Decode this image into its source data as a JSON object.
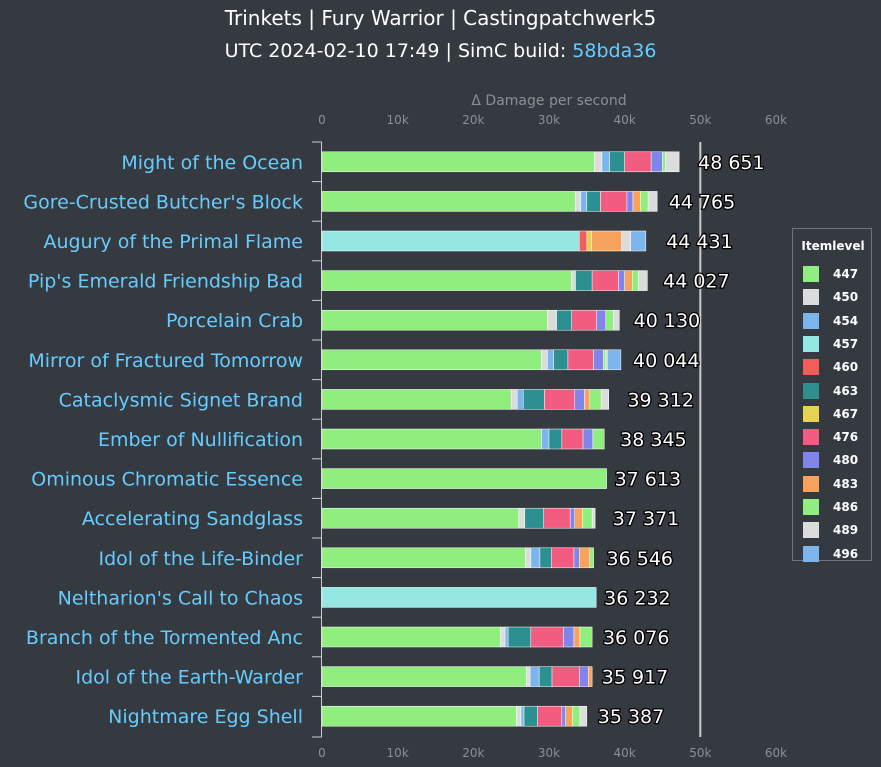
{
  "header": {
    "title": "Trinkets | Fury Warrior | Castingpatchwerk5",
    "subtitle_prefix": "UTC 2024-02-10 17:49 | SimC build: ",
    "subtitle_link": "58bda36"
  },
  "chart_data": {
    "type": "bar",
    "orientation": "horizontal",
    "stacked": true,
    "xlabel": "Δ Damage per second",
    "xlim": [
      0,
      60000
    ],
    "ticks": [
      0,
      10000,
      20000,
      30000,
      40000,
      50000,
      60000
    ],
    "tick_labels": [
      "0",
      "10k",
      "20k",
      "30k",
      "40k",
      "50k",
      "60k"
    ],
    "grid": false,
    "legend_title": "Itemlevel",
    "legend_position": "right",
    "series": [
      {
        "name": "447",
        "color": "#90ee7e"
      },
      {
        "name": "450",
        "color": "#dcdcdc"
      },
      {
        "name": "454",
        "color": "#7cb5ec"
      },
      {
        "name": "457",
        "color": "#94e8e1"
      },
      {
        "name": "460",
        "color": "#f45b5b"
      },
      {
        "name": "463",
        "color": "#2b908f"
      },
      {
        "name": "467",
        "color": "#e4d354"
      },
      {
        "name": "476",
        "color": "#f15c80"
      },
      {
        "name": "480",
        "color": "#8085e9"
      },
      {
        "name": "483",
        "color": "#f7a35c"
      },
      {
        "name": "486",
        "color": "#90ee7e"
      },
      {
        "name": "489",
        "color": "#dcdcdc"
      },
      {
        "name": "496",
        "color": "#7cb5ec"
      }
    ],
    "categories": [
      "Might of the Ocean",
      "Gore-Crusted Butcher's Block",
      "Augury of the Primal Flame",
      "Pip's Emerald Friendship Bad",
      "Porcelain Crab",
      "Mirror of Fractured Tomorrow",
      "Cataclysmic Signet Brand",
      "Ember of Nullification",
      "Ominous Chromatic Essence",
      "Accelerating Sandglass",
      "Idol of the Life-Binder",
      "Neltharion's Call to Chaos",
      "Branch of the Tormented Anc",
      "Idol of the Earth-Warder",
      "Nightmare Egg Shell"
    ],
    "totals": [
      48651,
      44765,
      44431,
      44027,
      40130,
      40044,
      39312,
      38345,
      37613,
      37371,
      36546,
      36232,
      36076,
      35917,
      35387
    ],
    "total_labels": [
      "48 651",
      "44 765",
      "44 431",
      "44 027",
      "40 130",
      "40 044",
      "39 312",
      "38 345",
      "37 613",
      "37 371",
      "36 546",
      "36 232",
      "36 076",
      "35 917",
      "35 387"
    ],
    "segments": [
      [
        [
          "447",
          36000
        ],
        [
          "450",
          1000
        ],
        [
          "454",
          1000
        ],
        [
          "463",
          2000
        ],
        [
          "476",
          3500
        ],
        [
          "480",
          1500
        ],
        [
          "486",
          400
        ],
        [
          "489",
          1800
        ]
      ],
      [
        [
          "447",
          33500
        ],
        [
          "450",
          700
        ],
        [
          "454",
          800
        ],
        [
          "463",
          1800
        ],
        [
          "476",
          3500
        ],
        [
          "480",
          800
        ],
        [
          "483",
          1000
        ],
        [
          "486",
          1000
        ],
        [
          "489",
          1200
        ]
      ],
      [
        [
          "457",
          34000
        ],
        [
          "460",
          1000
        ],
        [
          "467",
          600
        ],
        [
          "483",
          4000
        ],
        [
          "489",
          1200
        ],
        [
          "496",
          2000
        ]
      ],
      [
        [
          "447",
          33000
        ],
        [
          "450",
          500
        ],
        [
          "463",
          2200
        ],
        [
          "476",
          3500
        ],
        [
          "480",
          800
        ],
        [
          "483",
          1000
        ],
        [
          "486",
          800
        ],
        [
          "489",
          1200
        ]
      ],
      [
        [
          "447",
          29800
        ],
        [
          "450",
          1200
        ],
        [
          "463",
          2000
        ],
        [
          "476",
          3300
        ],
        [
          "480",
          1200
        ],
        [
          "486",
          1000
        ],
        [
          "489",
          800
        ]
      ],
      [
        [
          "447",
          29000
        ],
        [
          "450",
          800
        ],
        [
          "454",
          800
        ],
        [
          "463",
          1900
        ],
        [
          "476",
          3400
        ],
        [
          "480",
          1300
        ],
        [
          "486",
          300
        ],
        [
          "489",
          200
        ],
        [
          "496",
          1800
        ]
      ],
      [
        [
          "447",
          25000
        ],
        [
          "450",
          800
        ],
        [
          "454",
          800
        ],
        [
          "463",
          2800
        ],
        [
          "476",
          4000
        ],
        [
          "480",
          1300
        ],
        [
          "483",
          700
        ],
        [
          "486",
          1500
        ],
        [
          "489",
          1000
        ]
      ],
      [
        [
          "447",
          29000
        ],
        [
          "454",
          1000
        ],
        [
          "463",
          1700
        ],
        [
          "476",
          2800
        ],
        [
          "480",
          1300
        ],
        [
          "486",
          1500
        ]
      ],
      [
        [
          "447",
          37613
        ]
      ],
      [
        [
          "447",
          26000
        ],
        [
          "450",
          800
        ],
        [
          "463",
          2500
        ],
        [
          "476",
          3500
        ],
        [
          "480",
          600
        ],
        [
          "483",
          1000
        ],
        [
          "486",
          1300
        ],
        [
          "489",
          400
        ]
      ],
      [
        [
          "447",
          26900
        ],
        [
          "450",
          700
        ],
        [
          "454",
          1200
        ],
        [
          "463",
          1500
        ],
        [
          "476",
          3000
        ],
        [
          "480",
          700
        ],
        [
          "483",
          1400
        ],
        [
          "486",
          500
        ]
      ],
      [
        [
          "457",
          36232
        ]
      ],
      [
        [
          "447",
          23600
        ],
        [
          "450",
          600
        ],
        [
          "454",
          400
        ],
        [
          "463",
          3000
        ],
        [
          "476",
          4300
        ],
        [
          "480",
          1400
        ],
        [
          "483",
          800
        ],
        [
          "486",
          1600
        ]
      ],
      [
        [
          "447",
          27000
        ],
        [
          "450",
          500
        ],
        [
          "454",
          1200
        ],
        [
          "463",
          1700
        ],
        [
          "476",
          3600
        ],
        [
          "480",
          1200
        ],
        [
          "483",
          500
        ]
      ],
      [
        [
          "447",
          25700
        ],
        [
          "450",
          600
        ],
        [
          "454",
          400
        ],
        [
          "463",
          1800
        ],
        [
          "476",
          3200
        ],
        [
          "480",
          500
        ],
        [
          "483",
          900
        ],
        [
          "486",
          1000
        ],
        [
          "489",
          900
        ]
      ]
    ]
  }
}
